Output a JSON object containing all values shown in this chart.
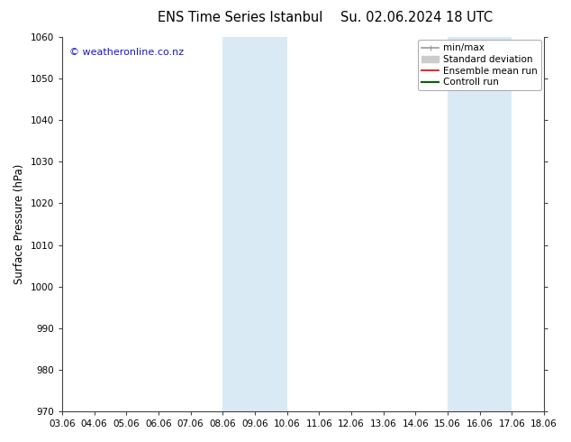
{
  "title_left": "ENS Time Series Istanbul",
  "title_right": "Su. 02.06.2024 18 UTC",
  "ylabel": "Surface Pressure (hPa)",
  "ylim": [
    970,
    1060
  ],
  "yticks": [
    970,
    980,
    990,
    1000,
    1010,
    1020,
    1030,
    1040,
    1050,
    1060
  ],
  "xtick_labels": [
    "03.06",
    "04.06",
    "05.06",
    "06.06",
    "07.06",
    "08.06",
    "09.06",
    "10.06",
    "11.06",
    "12.06",
    "13.06",
    "14.06",
    "15.06",
    "16.06",
    "17.06",
    "18.06"
  ],
  "shaded_bands": [
    {
      "xstart": 5,
      "xend": 7
    },
    {
      "xstart": 12,
      "xend": 14
    }
  ],
  "band_color": "#daeaf5",
  "watermark_text": "© weatheronline.co.nz",
  "watermark_color": "#1515cc",
  "legend_items": [
    {
      "label": "min/max",
      "color": "#999999",
      "lw": 1.2,
      "type": "minmax"
    },
    {
      "label": "Standard deviation",
      "color": "#cccccc",
      "lw": 7,
      "type": "band"
    },
    {
      "label": "Ensemble mean run",
      "color": "#dd0000",
      "lw": 1.2,
      "type": "line"
    },
    {
      "label": "Controll run",
      "color": "#006600",
      "lw": 1.5,
      "type": "line"
    }
  ],
  "bg_color": "#ffffff",
  "plot_bg_color": "#ffffff",
  "title_fontsize": 10.5,
  "axis_label_fontsize": 8.5,
  "tick_fontsize": 7.5,
  "legend_fontsize": 7.5,
  "watermark_fontsize": 8
}
